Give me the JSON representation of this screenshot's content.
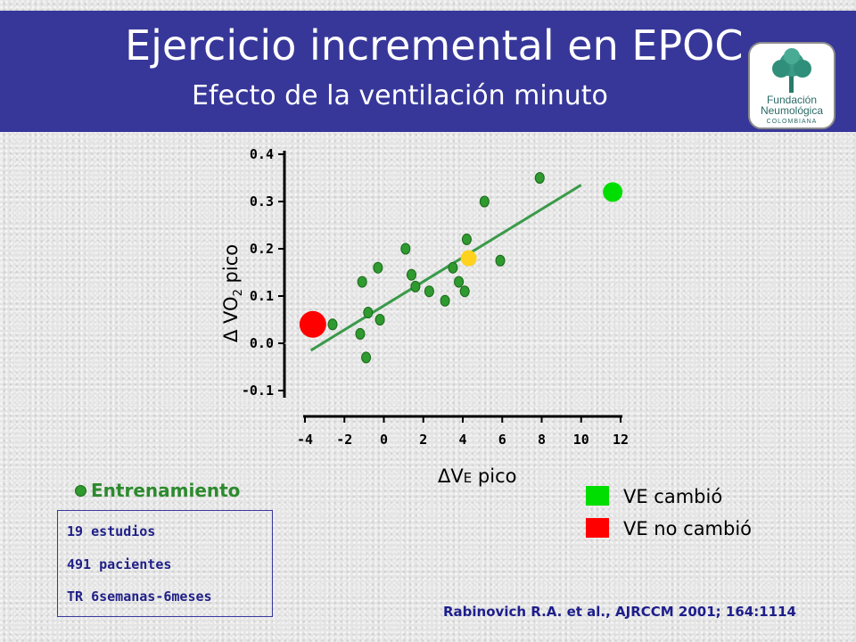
{
  "header": {
    "title": "Ejercicio incremental en EPOC",
    "subtitle": "Efecto de la ventilación minuto",
    "logo": {
      "line1": "Fundación",
      "line2": "Neumológica",
      "line3": "COLOMBIANA",
      "icon": "tree-icon"
    }
  },
  "chart_data": {
    "type": "scatter",
    "xlabel": "ΔVE pico",
    "ylabel": "Δ VO2 pico",
    "xlim": [
      -4,
      12
    ],
    "ylim": [
      -0.1,
      0.4
    ],
    "x_ticks": [
      "-4",
      "-2",
      "0",
      "2",
      "4",
      "6",
      "8",
      "10",
      "12"
    ],
    "y_ticks": [
      "0.4",
      "0.3",
      "0.2",
      "0.1",
      "0.0",
      "-0.1"
    ],
    "grid": false,
    "series": [
      {
        "color": "#2f9a2f",
        "points": [
          [
            -2.6,
            0.04
          ],
          [
            -1.2,
            0.02
          ],
          [
            -1.1,
            0.13
          ],
          [
            -0.9,
            -0.03
          ],
          [
            -0.8,
            0.065
          ],
          [
            -0.3,
            0.16
          ],
          [
            -0.2,
            0.05
          ],
          [
            1.1,
            0.2
          ],
          [
            1.4,
            0.145
          ],
          [
            1.6,
            0.12
          ],
          [
            2.3,
            0.11
          ],
          [
            3.1,
            0.09
          ],
          [
            3.5,
            0.16
          ],
          [
            3.8,
            0.13
          ],
          [
            4.1,
            0.11
          ],
          [
            4.2,
            0.22
          ],
          [
            5.1,
            0.3
          ],
          [
            5.9,
            0.175
          ],
          [
            7.9,
            0.35
          ]
        ]
      },
      {
        "color": "#ffd21e",
        "points": [
          [
            4.3,
            0.18
          ]
        ]
      },
      {
        "color": "#00dd00",
        "points": [
          [
            11.6,
            0.32
          ]
        ]
      },
      {
        "color": "#ff0000",
        "points": [
          [
            -3.6,
            0.04
          ]
        ]
      }
    ],
    "trendline": {
      "color": "#3a9a4a",
      "from": [
        -3.7,
        -0.015
      ],
      "to": [
        10.0,
        0.335
      ]
    }
  },
  "legend": {
    "title": "Entrenamiento",
    "dot_color": "#2f9a2f",
    "info": [
      "19 estudios",
      "491 pacientes",
      "TR 6semanas-6meses"
    ]
  },
  "key": [
    {
      "label": "VE cambió",
      "color": "#00dd00"
    },
    {
      "label": "VE no cambió",
      "color": "#ff0000"
    }
  ],
  "citation": "Rabinovich R.A. et al., AJRCCM 2001; 164:1114"
}
